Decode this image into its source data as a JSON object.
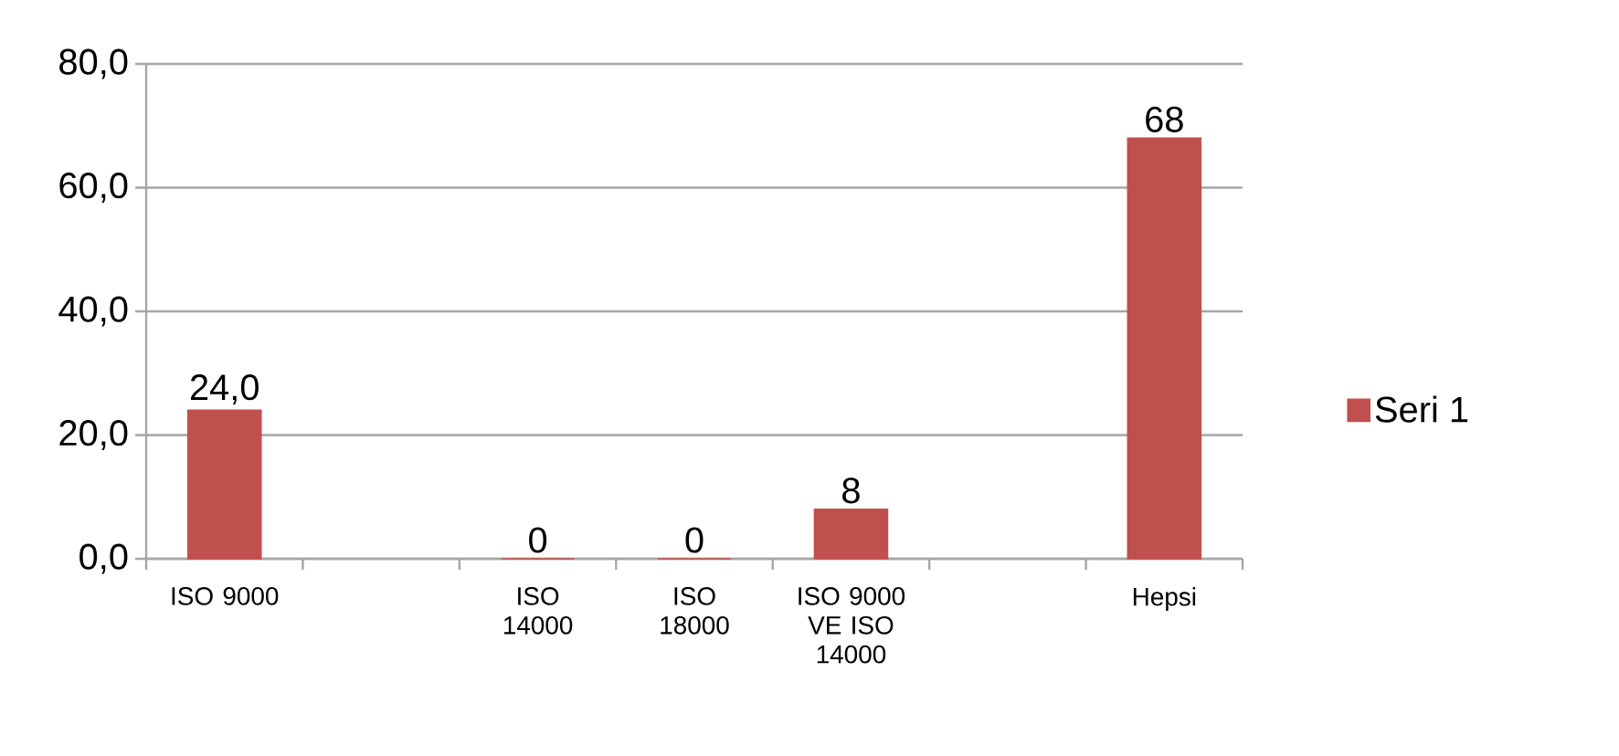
{
  "chart_data": {
    "type": "bar",
    "categories": [
      "ISO 9000",
      null,
      "ISO 14000",
      "ISO 18000",
      "ISO 9000 VE ISO 14000",
      null,
      "Hepsi"
    ],
    "series": [
      {
        "name": "Seri 1",
        "color": "#c0504d",
        "values": [
          24,
          null,
          0,
          0,
          8,
          null,
          68
        ],
        "value_labels": [
          "24,0",
          null,
          "0",
          "0",
          "8",
          null,
          "68"
        ]
      }
    ],
    "ylim": [
      0,
      80
    ],
    "yticks": [
      {
        "value": 0,
        "label": "0,0"
      },
      {
        "value": 20,
        "label": "20,0"
      },
      {
        "value": 40,
        "label": "40,0"
      },
      {
        "value": 60,
        "label": "60,0"
      },
      {
        "value": 80,
        "label": "80,0"
      }
    ],
    "grid": "y",
    "legend": "right"
  }
}
